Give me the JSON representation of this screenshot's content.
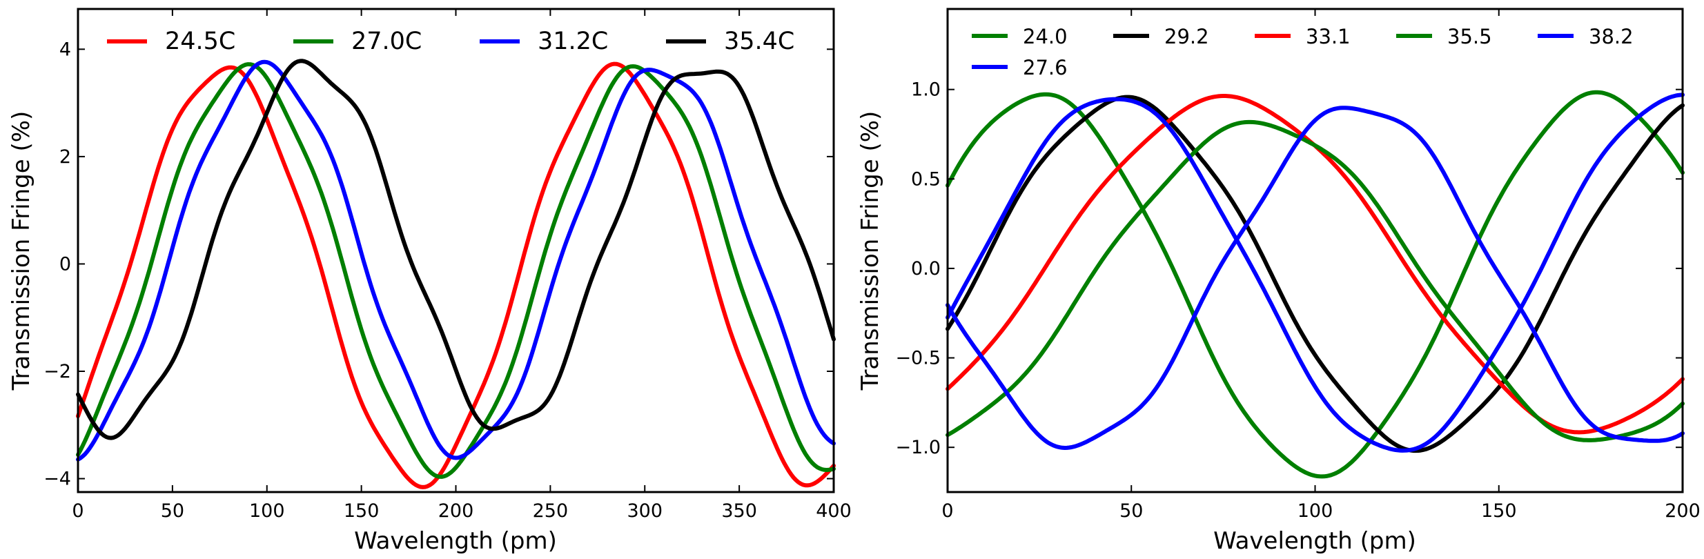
{
  "chart_data": [
    {
      "type": "line",
      "title": "",
      "xlabel": "Wavelength (pm)",
      "ylabel": "Transmission Fringe (%)",
      "xlim": [
        0,
        400
      ],
      "ylim": [
        -4.25,
        4.75
      ],
      "xticks": [
        0,
        50,
        100,
        150,
        200,
        250,
        300,
        350,
        400
      ],
      "yticks": [
        -4,
        -2,
        0,
        2,
        4
      ],
      "xtick_labels": [
        "0",
        "50",
        "100",
        "150",
        "200",
        "250",
        "300",
        "350",
        "400"
      ],
      "ytick_labels": [
        "−4",
        "−2",
        "0",
        "2",
        "4"
      ],
      "grid": false,
      "legend_position": "top",
      "series": [
        {
          "name": "24.5C",
          "color": "#ff0000",
          "amplitude": 3.85,
          "center": -0.22,
          "period": 208,
          "peak": 77,
          "ripple": 0.1
        },
        {
          "name": "27.0C",
          "color": "#007f00",
          "amplitude": 3.75,
          "center": -0.12,
          "period": 208,
          "peak": 89,
          "ripple": 0.1
        },
        {
          "name": "31.2C",
          "color": "#0000ff",
          "amplitude": 3.6,
          "center": 0.05,
          "period": 208,
          "peak": 100,
          "ripple": 0.12
        },
        {
          "name": "35.4C",
          "color": "#000000",
          "amplitude": 3.4,
          "center": 0.3,
          "period": 208,
          "peak": 123,
          "ripple": 0.15
        }
      ]
    },
    {
      "type": "line",
      "title": "",
      "xlabel": "Wavelength (pm)",
      "ylabel": "Transmission Fringe (%)",
      "xlim": [
        0,
        200
      ],
      "ylim": [
        -1.25,
        1.45
      ],
      "xticks": [
        0,
        50,
        100,
        150,
        200
      ],
      "yticks": [
        -1.0,
        -0.5,
        0.0,
        0.5,
        1.0
      ],
      "xtick_labels": [
        "0",
        "50",
        "100",
        "150",
        "200"
      ],
      "ytick_labels": [
        "−1.0",
        "−0.5",
        "0.0",
        "0.5",
        "1.0"
      ],
      "grid": false,
      "legend_position": "top",
      "series": [
        {
          "name": "24.0",
          "color": "#007f00",
          "amplitude": 1.06,
          "center": -0.09,
          "period": 152,
          "peak": 25,
          "ripple": 0.015
        },
        {
          "name": "29.2",
          "color": "#000000",
          "amplitude": 0.97,
          "center": -0.03,
          "period": 160,
          "peak": 48,
          "ripple": 0.02
        },
        {
          "name": "33.1",
          "color": "#ff0000",
          "amplitude": 0.93,
          "center": 0.02,
          "period": 196,
          "peak": 76,
          "ripple": 0.015
        },
        {
          "name": "35.5",
          "color": "#007f00",
          "amplitude": 0.89,
          "center": -0.08,
          "period": 186,
          "peak": 85,
          "ripple": 0.02
        },
        {
          "name": "38.2",
          "color": "#0000ff",
          "amplitude": 0.95,
          "center": -0.04,
          "period": 154,
          "peak": 112,
          "ripple": 0.03
        },
        {
          "name": "27.6",
          "color": "#0000ff",
          "amplitude": 0.99,
          "center": -0.03,
          "period": 154,
          "peak": 45,
          "ripple": 0.015
        }
      ]
    }
  ]
}
